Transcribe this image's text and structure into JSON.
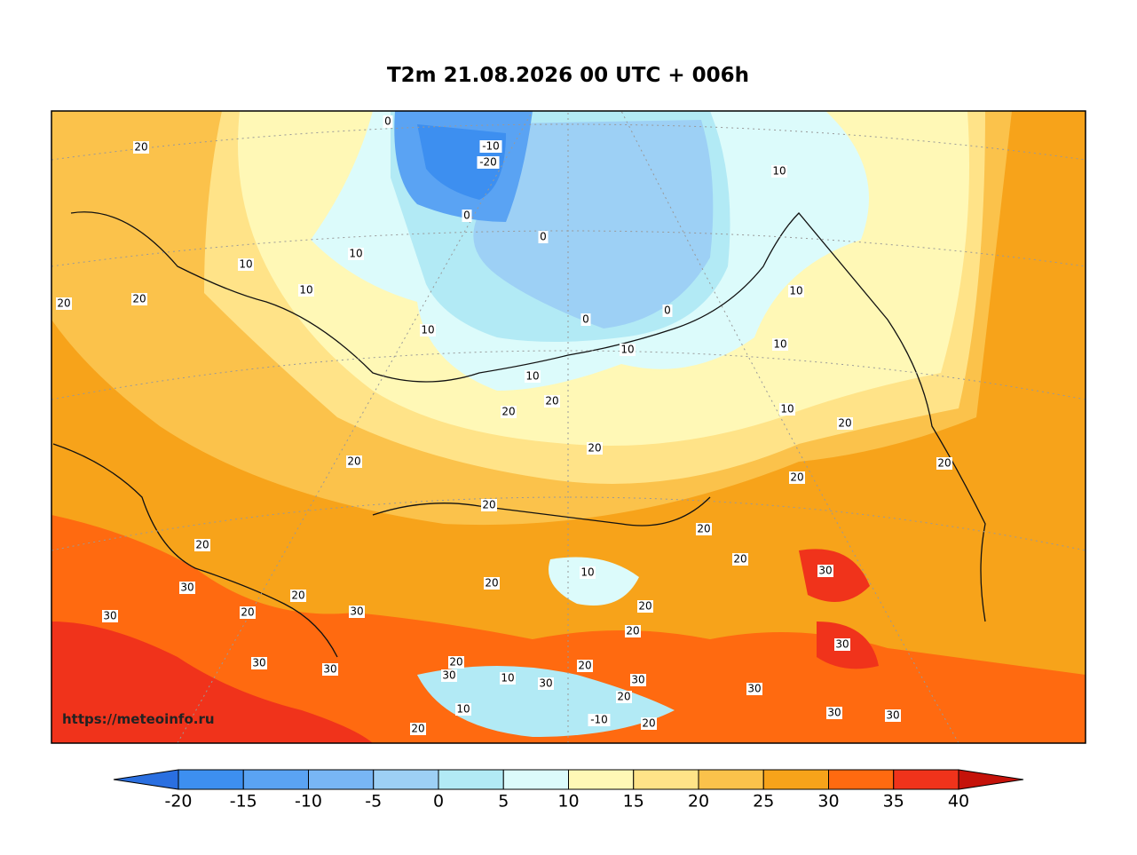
{
  "title": "T2m 21.08.2026 00 UTC + 006h",
  "watermark": "https://meteoinfo.ru",
  "contour_labels": [
    "20",
    "0",
    "-10",
    "-20",
    "0",
    "0",
    "10",
    "10",
    "10",
    "10",
    "20",
    "20",
    "10",
    "0",
    "0",
    "10",
    "10",
    "10",
    "10",
    "20",
    "20",
    "10",
    "20",
    "20",
    "20",
    "20",
    "20",
    "20",
    "20",
    "20",
    "20",
    "10",
    "30",
    "20",
    "30",
    "20",
    "20",
    "30",
    "20",
    "30",
    "20",
    "30",
    "30",
    "30",
    "20",
    "20",
    "30",
    "30",
    "10",
    "30",
    "30",
    "20",
    "30",
    "30",
    "10",
    "-10",
    "20",
    "20"
  ],
  "colorbar": {
    "ticks": [
      -20,
      -15,
      -10,
      -5,
      0,
      5,
      10,
      15,
      20,
      25,
      30,
      35,
      40
    ],
    "colors": [
      "#2a6fe0",
      "#3d8ff0",
      "#5aa3f3",
      "#78b6f5",
      "#9dd0f5",
      "#b2eaf5",
      "#dcfbfb",
      "#fff8b6",
      "#ffe388",
      "#fbc24b",
      "#f7a31a",
      "#ff6a10",
      "#f0331b",
      "#c5120a"
    ]
  }
}
